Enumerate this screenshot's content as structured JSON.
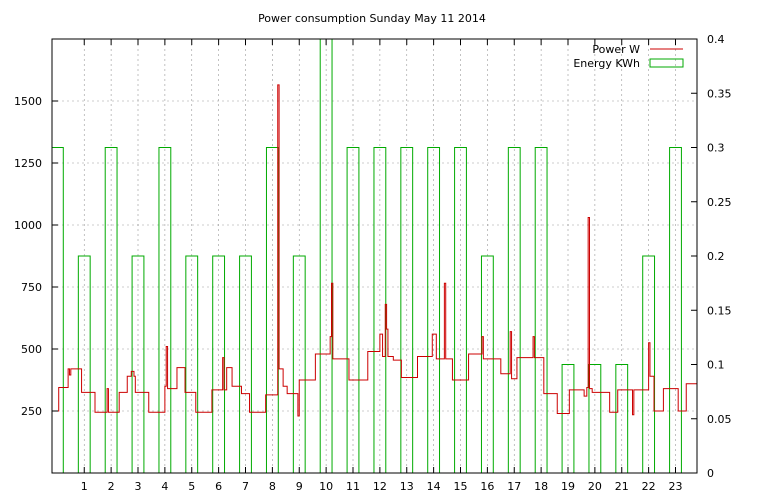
{
  "chart_data": {
    "type": "line",
    "title": "Power consumption Sunday May 11 2014",
    "xlabel": "",
    "ylabel": "",
    "y2label": "",
    "xlim": [
      -0.2,
      23.8
    ],
    "ylim": [
      0,
      1750
    ],
    "y2lim": [
      0,
      0.4
    ],
    "x_ticks": [
      1,
      2,
      3,
      4,
      5,
      6,
      7,
      8,
      9,
      10,
      11,
      12,
      13,
      14,
      15,
      16,
      17,
      18,
      19,
      20,
      21,
      22,
      23
    ],
    "y_ticks": [
      250,
      500,
      750,
      1000,
      1250,
      1500
    ],
    "y2_ticks": [
      0,
      0.05,
      0.1,
      0.15,
      0.2,
      0.25,
      0.3,
      0.35,
      0.4
    ],
    "grid": true,
    "legend_position": "top-right",
    "colors": {
      "power": "#cc0000",
      "energy": "#00aa00",
      "grid": "#999999",
      "axis": "#000000"
    },
    "series": [
      {
        "name": "Power W",
        "axis": "y1",
        "style": "steps",
        "points": [
          [
            0.0,
            250
          ],
          [
            0.05,
            345
          ],
          [
            0.35,
            345
          ],
          [
            0.4,
            420
          ],
          [
            0.45,
            395
          ],
          [
            0.5,
            420
          ],
          [
            0.85,
            420
          ],
          [
            0.9,
            325
          ],
          [
            1.3,
            325
          ],
          [
            1.4,
            245
          ],
          [
            1.8,
            245
          ],
          [
            1.85,
            340
          ],
          [
            1.9,
            245
          ],
          [
            2.2,
            245
          ],
          [
            2.3,
            325
          ],
          [
            2.5,
            325
          ],
          [
            2.6,
            390
          ],
          [
            2.75,
            410
          ],
          [
            2.85,
            390
          ],
          [
            2.9,
            325
          ],
          [
            3.3,
            325
          ],
          [
            3.4,
            245
          ],
          [
            3.9,
            245
          ],
          [
            4.0,
            350
          ],
          [
            4.05,
            510
          ],
          [
            4.1,
            340
          ],
          [
            4.4,
            340
          ],
          [
            4.45,
            425
          ],
          [
            4.7,
            425
          ],
          [
            4.75,
            325
          ],
          [
            5.1,
            325
          ],
          [
            5.15,
            245
          ],
          [
            5.7,
            245
          ],
          [
            5.75,
            335
          ],
          [
            6.1,
            335
          ],
          [
            6.15,
            465
          ],
          [
            6.2,
            335
          ],
          [
            6.3,
            425
          ],
          [
            6.45,
            425
          ],
          [
            6.5,
            350
          ],
          [
            6.8,
            350
          ],
          [
            6.85,
            320
          ],
          [
            7.1,
            320
          ],
          [
            7.15,
            245
          ],
          [
            7.7,
            245
          ],
          [
            7.75,
            315
          ],
          [
            8.15,
            315
          ],
          [
            8.2,
            1565
          ],
          [
            8.25,
            420
          ],
          [
            8.35,
            420
          ],
          [
            8.4,
            350
          ],
          [
            8.5,
            350
          ],
          [
            8.55,
            320
          ],
          [
            8.9,
            320
          ],
          [
            8.95,
            230
          ],
          [
            9.0,
            375
          ],
          [
            9.55,
            375
          ],
          [
            9.6,
            480
          ],
          [
            10.1,
            480
          ],
          [
            10.15,
            550
          ],
          [
            10.2,
            765
          ],
          [
            10.25,
            460
          ],
          [
            10.8,
            460
          ],
          [
            10.85,
            375
          ],
          [
            11.5,
            375
          ],
          [
            11.55,
            490
          ],
          [
            11.95,
            490
          ],
          [
            12.0,
            560
          ],
          [
            12.1,
            470
          ],
          [
            12.2,
            680
          ],
          [
            12.25,
            580
          ],
          [
            12.3,
            470
          ],
          [
            12.45,
            470
          ],
          [
            12.5,
            455
          ],
          [
            12.75,
            455
          ],
          [
            12.8,
            385
          ],
          [
            13.35,
            385
          ],
          [
            13.4,
            470
          ],
          [
            13.9,
            470
          ],
          [
            13.95,
            560
          ],
          [
            14.05,
            560
          ],
          [
            14.1,
            460
          ],
          [
            14.35,
            460
          ],
          [
            14.4,
            765
          ],
          [
            14.45,
            460
          ],
          [
            14.65,
            460
          ],
          [
            14.7,
            375
          ],
          [
            15.25,
            375
          ],
          [
            15.3,
            480
          ],
          [
            15.75,
            480
          ],
          [
            15.8,
            550
          ],
          [
            15.85,
            460
          ],
          [
            16.45,
            460
          ],
          [
            16.5,
            400
          ],
          [
            16.8,
            400
          ],
          [
            16.85,
            570
          ],
          [
            16.9,
            380
          ],
          [
            17.05,
            380
          ],
          [
            17.1,
            465
          ],
          [
            17.65,
            465
          ],
          [
            17.7,
            550
          ],
          [
            17.75,
            465
          ],
          [
            18.05,
            465
          ],
          [
            18.1,
            320
          ],
          [
            18.55,
            320
          ],
          [
            18.6,
            240
          ],
          [
            19.0,
            240
          ],
          [
            19.05,
            335
          ],
          [
            19.55,
            335
          ],
          [
            19.6,
            310
          ],
          [
            19.7,
            345
          ],
          [
            19.75,
            1030
          ],
          [
            19.8,
            340
          ],
          [
            19.9,
            325
          ],
          [
            20.5,
            325
          ],
          [
            20.55,
            245
          ],
          [
            20.8,
            245
          ],
          [
            20.85,
            335
          ],
          [
            21.35,
            335
          ],
          [
            21.4,
            235
          ],
          [
            21.45,
            335
          ],
          [
            21.95,
            335
          ],
          [
            22.0,
            525
          ],
          [
            22.05,
            390
          ],
          [
            22.15,
            390
          ],
          [
            22.2,
            250
          ],
          [
            22.5,
            250
          ],
          [
            22.55,
            340
          ],
          [
            23.05,
            340
          ],
          [
            23.1,
            250
          ],
          [
            23.35,
            250
          ],
          [
            23.4,
            360
          ],
          [
            23.75,
            360
          ],
          [
            23.8,
            335
          ]
        ]
      },
      {
        "name": "Energy KWh",
        "axis": "y2",
        "style": "boxes",
        "bars": [
          [
            0,
            0.3
          ],
          [
            1,
            0.2
          ],
          [
            2,
            0.3
          ],
          [
            3,
            0.2
          ],
          [
            4,
            0.3
          ],
          [
            5,
            0.2
          ],
          [
            6,
            0.2
          ],
          [
            7,
            0.2
          ],
          [
            8,
            0.3
          ],
          [
            9,
            0.2
          ],
          [
            10,
            0.4
          ],
          [
            11,
            0.3
          ],
          [
            12,
            0.3
          ],
          [
            13,
            0.3
          ],
          [
            14,
            0.3
          ],
          [
            15,
            0.3
          ],
          [
            16,
            0.2
          ],
          [
            17,
            0.3
          ],
          [
            18,
            0.3
          ],
          [
            19,
            0.1
          ],
          [
            20,
            0.1
          ],
          [
            21,
            0.1
          ],
          [
            22,
            0.2
          ],
          [
            23,
            0.3
          ]
        ]
      }
    ]
  }
}
